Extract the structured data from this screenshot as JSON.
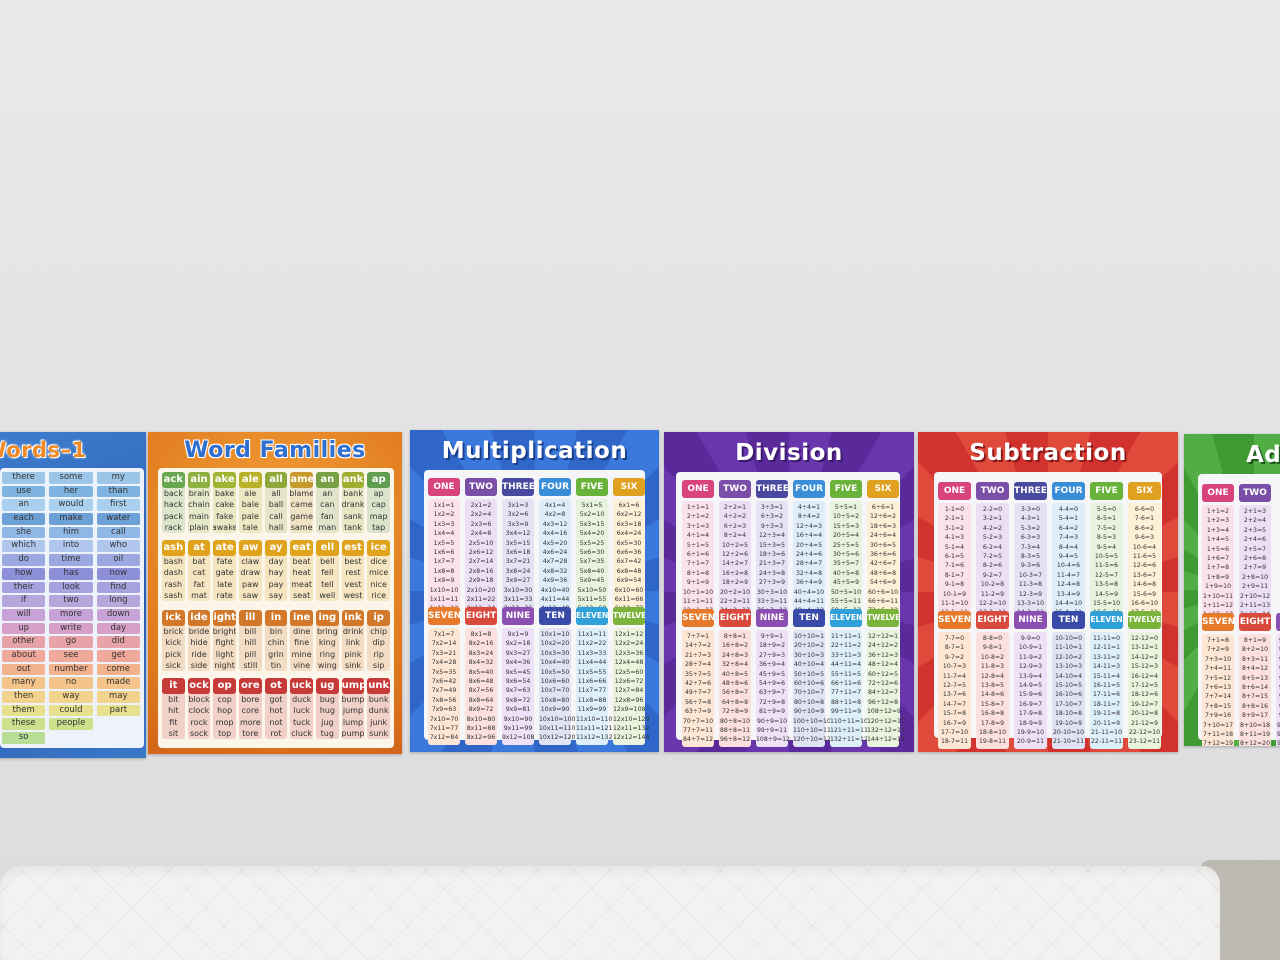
{
  "posters": {
    "sight_words": {
      "title": "Words–1",
      "words": [
        "there",
        "some",
        "my",
        "use",
        "her",
        "than",
        "an",
        "would",
        "first",
        "each",
        "make",
        "water",
        "she",
        "him",
        "call",
        "which",
        "into",
        "who",
        "do",
        "time",
        "oil",
        "how",
        "has",
        "now",
        "their",
        "look",
        "find",
        "if",
        "two",
        "long",
        "will",
        "more",
        "down",
        "up",
        "write",
        "day",
        "other",
        "go",
        "did",
        "about",
        "see",
        "get",
        "out",
        "number",
        "come",
        "many",
        "no",
        "made",
        "then",
        "way",
        "may",
        "them",
        "could",
        "part",
        "these",
        "people",
        "",
        "so",
        "",
        ""
      ],
      "colors": [
        "#9cc5e8",
        "#7fb3e0",
        "#a9d0ee",
        "#6ea0d8",
        "#8fb8e6",
        "#b0c6ec",
        "#9ba9e0",
        "#8d8fd8",
        "#a7a1e0",
        "#b5a6dc",
        "#c7a2d6",
        "#d6a0c8",
        "#e8a3a8",
        "#f0a89a",
        "#f2b28c",
        "#f5c48a",
        "#f3d28b",
        "#e7e08e",
        "#cfe08c",
        "#b8dd94",
        "#a4d8a0"
      ]
    },
    "word_families": {
      "title": "Word Families",
      "rows": [
        {
          "heads": [
            "ack",
            "ain",
            "ake",
            "ale",
            "all",
            "ame",
            "an",
            "ank",
            "ap"
          ],
          "words": [
            [
              "back",
              "hack",
              "pack",
              "rack"
            ],
            [
              "brain",
              "chain",
              "main",
              "plain"
            ],
            [
              "bake",
              "cake",
              "fake",
              "awake"
            ],
            [
              "ale",
              "bale",
              "pale",
              "tale"
            ],
            [
              "all",
              "ball",
              "call",
              "hall"
            ],
            [
              "blame",
              "came",
              "game",
              "same"
            ],
            [
              "an",
              "can",
              "fan",
              "man"
            ],
            [
              "bank",
              "drank",
              "sank",
              "tank"
            ],
            [
              "ap",
              "cap",
              "map",
              "tap"
            ]
          ]
        },
        {
          "heads": [
            "ash",
            "at",
            "ate",
            "aw",
            "ay",
            "eat",
            "ell",
            "est",
            "ice"
          ],
          "words": [
            [
              "bash",
              "dash",
              "rash",
              "sash"
            ],
            [
              "bat",
              "cat",
              "fat",
              "mat"
            ],
            [
              "fate",
              "gate",
              "late",
              "rate"
            ],
            [
              "claw",
              "draw",
              "paw",
              "saw"
            ],
            [
              "day",
              "hay",
              "pay",
              "say"
            ],
            [
              "beat",
              "heat",
              "meat",
              "seat"
            ],
            [
              "bell",
              "fell",
              "tell",
              "well"
            ],
            [
              "best",
              "rest",
              "vest",
              "west"
            ],
            [
              "dice",
              "mice",
              "nice",
              "rice"
            ]
          ]
        },
        {
          "heads": [
            "ick",
            "ide",
            "ight",
            "ill",
            "in",
            "ine",
            "ing",
            "ink",
            "ip"
          ],
          "words": [
            [
              "brick",
              "kick",
              "pick",
              "sick"
            ],
            [
              "bride",
              "hide",
              "ride",
              "side"
            ],
            [
              "bright",
              "fight",
              "light",
              "night"
            ],
            [
              "bill",
              "hill",
              "pill",
              "still"
            ],
            [
              "bin",
              "chin",
              "grin",
              "tin"
            ],
            [
              "dine",
              "fine",
              "mine",
              "vine"
            ],
            [
              "bring",
              "king",
              "ring",
              "wing"
            ],
            [
              "drink",
              "link",
              "pink",
              "sink"
            ],
            [
              "chip",
              "dip",
              "rip",
              "sip"
            ]
          ]
        },
        {
          "heads": [
            "it",
            "ock",
            "op",
            "ore",
            "ot",
            "uck",
            "ug",
            "ump",
            "unk"
          ],
          "words": [
            [
              "bit",
              "hit",
              "fit",
              "sit"
            ],
            [
              "block",
              "clock",
              "rock",
              "sock"
            ],
            [
              "cop",
              "hop",
              "mop",
              "top"
            ],
            [
              "bore",
              "core",
              "more",
              "tore"
            ],
            [
              "got",
              "hot",
              "not",
              "rot"
            ],
            [
              "duck",
              "luck",
              "tuck",
              "cluck"
            ],
            [
              "bug",
              "hug",
              "jug",
              "tug"
            ],
            [
              "bump",
              "jump",
              "lump",
              "pump"
            ],
            [
              "bunk",
              "dunk",
              "junk",
              "sunk"
            ]
          ]
        }
      ],
      "head_colors": [
        "#6aa84f",
        "#8db040",
        "#a0b432",
        "#b8b22a",
        "#8fa83c",
        "#c69a2c",
        "#7aa045",
        "#9fae30",
        "#5f9d4f"
      ],
      "row_head_colors": [
        "#6aa84f",
        "#e0a31c",
        "#d2782a",
        "#c63a3a"
      ]
    },
    "multiplication": {
      "title": "Multiplication",
      "top_heads": [
        "ONE",
        "TWO",
        "THREE",
        "FOUR",
        "FIVE",
        "SIX"
      ],
      "bottom_heads": [
        "SEVEN",
        "EIGHT",
        "NINE",
        "TEN",
        "ELEVEN",
        "TWELVE"
      ],
      "op": "x",
      "mode": "mul"
    },
    "division": {
      "title": "Division",
      "top_heads": [
        "ONE",
        "TWO",
        "THREE",
        "FOUR",
        "FIVE",
        "SIX"
      ],
      "bottom_heads": [
        "SEVEN",
        "EIGHT",
        "NINE",
        "TEN",
        "ELEVEN",
        "TWELVE"
      ],
      "op": "÷",
      "mode": "div"
    },
    "subtraction": {
      "title": "Subtraction",
      "top_heads": [
        "ONE",
        "TWO",
        "THREE",
        "FOUR",
        "FIVE",
        "SIX"
      ],
      "bottom_heads": [
        "SEVEN",
        "EIGHT",
        "NINE",
        "TEN",
        "ELEVEN",
        "TWELVE"
      ],
      "op": "-",
      "mode": "sub"
    },
    "addition": {
      "title": "Ad",
      "top_heads": [
        "ONE",
        "TWO"
      ],
      "bottom_heads": [
        "SEVEN",
        "EIGHT",
        "N"
      ],
      "op": "+",
      "mode": "add"
    },
    "head_colors": [
      "#d9447e",
      "#7b4fa8",
      "#4a4aa0",
      "#3a8ed8",
      "#6ab33a",
      "#e0a020"
    ],
    "bottom_head_colors": [
      "#e77a2a",
      "#d84a3c",
      "#8a4fb0",
      "#3a4aa8",
      "#2fa0d8",
      "#7ab43a"
    ],
    "body_colors": [
      "#fbe1ec",
      "#ecdff5",
      "#e4e3f3",
      "#deedf9",
      "#e7f3dd",
      "#fcf0d6"
    ],
    "bottom_body_colors": [
      "#fde6d3",
      "#fbe0de",
      "#eee0f6",
      "#e0e3f4",
      "#ddf0f9",
      "#eaf4dc"
    ]
  }
}
